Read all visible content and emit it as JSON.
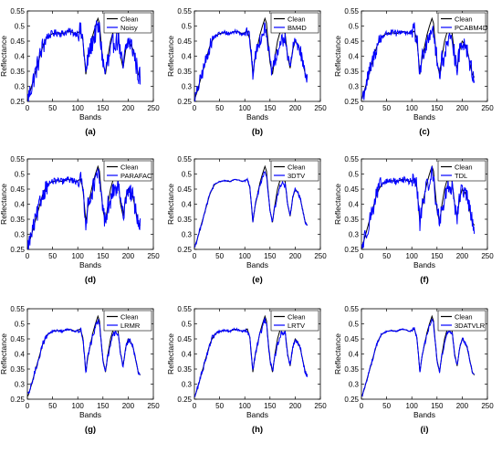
{
  "colors": {
    "clean": "#000000",
    "method": "#0000ff",
    "axis": "#000000"
  },
  "shared_axes": {
    "xlabel": "Bands",
    "ylabel": "Reflectance",
    "xlim": [
      0,
      250
    ],
    "ylim": [
      0.25,
      0.55
    ],
    "x_ticks": [
      0,
      50,
      100,
      150,
      200,
      250
    ],
    "y_ticks": [
      0.25,
      0.3,
      0.35,
      0.4,
      0.45,
      0.5,
      0.55
    ],
    "x_tick_labels": [
      "0",
      "50",
      "100",
      "150",
      "200",
      "250"
    ],
    "y_tick_labels": [
      "0.25",
      "0.3",
      "0.35",
      "0.4",
      "0.45",
      "0.5",
      "0.55"
    ],
    "clean_series_name": "Clean"
  },
  "chart_data": [
    {
      "type": "line",
      "caption": "(a)",
      "method": "Noisy",
      "noise": 0.035,
      "peak_scale": 0.85,
      "legend": "top-right"
    },
    {
      "type": "line",
      "caption": "(b)",
      "method": "BM4D",
      "noise": 0.022,
      "peak_scale": 0.85,
      "legend": "top-right"
    },
    {
      "type": "line",
      "caption": "(c)",
      "method": "PCABM4D",
      "noise": 0.03,
      "peak_scale": 0.85,
      "legend": "top-right"
    },
    {
      "type": "line",
      "caption": "(d)",
      "method": "PARAFAC",
      "noise": 0.03,
      "peak_scale": 0.85,
      "legend": "top-right"
    },
    {
      "type": "line",
      "caption": "(e)",
      "method": "3DTV",
      "noise": 0.006,
      "peak_scale": 0.92,
      "legend": "top-right"
    },
    {
      "type": "line",
      "caption": "(f)",
      "method": "TDL",
      "noise": 0.03,
      "peak_scale": 0.88,
      "legend": "top-right"
    },
    {
      "type": "line",
      "caption": "(g)",
      "method": "LRMR",
      "noise": 0.01,
      "peak_scale": 0.93,
      "legend": "top-right"
    },
    {
      "type": "line",
      "caption": "(h)",
      "method": "LRTV",
      "noise": 0.01,
      "peak_scale": 0.93,
      "legend": "top-right"
    },
    {
      "type": "line",
      "caption": "(i)",
      "method": "3DATVLR",
      "noise": 0.006,
      "peak_scale": 0.95,
      "legend": "top-right"
    }
  ],
  "clean_curve": {
    "x": [
      1,
      5,
      10,
      15,
      20,
      25,
      30,
      35,
      40,
      50,
      60,
      70,
      80,
      88,
      95,
      100,
      105,
      110,
      113,
      116,
      120,
      125,
      130,
      135,
      140,
      143,
      146,
      150,
      155,
      160,
      165,
      170,
      175,
      180,
      185,
      190,
      195,
      200,
      205,
      210,
      215,
      220,
      224
    ],
    "y": [
      0.26,
      0.28,
      0.31,
      0.34,
      0.37,
      0.4,
      0.43,
      0.45,
      0.465,
      0.475,
      0.478,
      0.475,
      0.482,
      0.48,
      0.475,
      0.478,
      0.483,
      0.455,
      0.4,
      0.34,
      0.39,
      0.43,
      0.47,
      0.5,
      0.525,
      0.51,
      0.45,
      0.38,
      0.34,
      0.4,
      0.45,
      0.48,
      0.49,
      0.475,
      0.4,
      0.36,
      0.42,
      0.45,
      0.44,
      0.42,
      0.38,
      0.34,
      0.33
    ]
  }
}
